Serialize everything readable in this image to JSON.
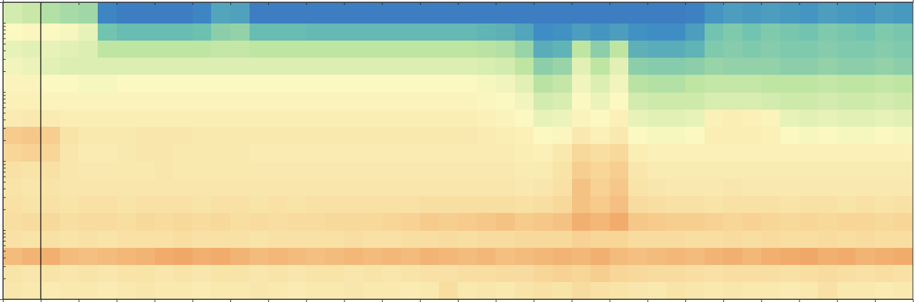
{
  "chart_data": {
    "type": "heatmap",
    "log": "y",
    "tick_labels": false,
    "xlim": [
      0,
      24
    ],
    "ylim": [
      1,
      20000
    ],
    "xticks": [
      1,
      2,
      3,
      4,
      5,
      6,
      7,
      8,
      9,
      10,
      11,
      12,
      13,
      14,
      15,
      16,
      17,
      18,
      19,
      20,
      21,
      22,
      23
    ],
    "yticks": [
      2,
      3,
      4,
      5,
      6,
      7,
      8,
      9,
      10,
      20,
      30,
      40,
      50,
      60,
      70,
      80,
      90,
      100,
      200,
      300,
      400,
      500,
      600,
      700,
      800,
      900,
      1000,
      2000,
      3000,
      4000,
      5000,
      6000,
      7000,
      8000,
      9000,
      10000
    ],
    "zlim": [
      0,
      10
    ],
    "vlines": [
      1
    ],
    "x_edges": [
      0,
      0.5,
      1,
      1.5,
      2,
      2.5,
      3,
      3.5,
      4,
      4.5,
      5,
      5.5,
      6,
      6.5,
      7,
      7.5,
      8,
      8.5,
      9,
      9.5,
      10,
      10.5,
      11,
      11.5,
      12,
      12.5,
      13,
      13.5,
      14,
      14.5,
      15,
      15.5,
      16,
      16.5,
      17,
      17.5,
      18,
      18.5,
      19,
      19.5,
      20,
      20.5,
      21,
      21.5,
      22,
      22.5,
      23,
      23.5,
      24
    ],
    "y_edges": [
      1,
      1.78,
      3.16,
      5.62,
      10,
      17.8,
      31.6,
      56.2,
      100,
      178,
      316,
      562,
      1000,
      1780,
      3160,
      5620,
      10000,
      20000
    ],
    "cells": [
      [
        5.7,
        5.6,
        5.5,
        5.6,
        5.6,
        5.5,
        5.6,
        5.7,
        5.6,
        5.6,
        5.5,
        5.6,
        5.6,
        5.7,
        5.6,
        5.5,
        5.6,
        5.6,
        5.7,
        5.6,
        5.6,
        5.5,
        5.6,
        6.0,
        5.6,
        5.7,
        5.6,
        5.8,
        5.9,
        5.8,
        6.1,
        5.9,
        5.8,
        5.7,
        5.6,
        5.8,
        5.7,
        5.6,
        5.7,
        5.6,
        5.6,
        5.5,
        5.6,
        5.9,
        5.6,
        5.6,
        5.5,
        5.6
      ],
      [
        5.8,
        5.7,
        5.8,
        5.7,
        5.8,
        5.7,
        5.8,
        5.8,
        5.7,
        5.8,
        5.7,
        5.8,
        5.8,
        5.7,
        5.8,
        5.7,
        5.8,
        5.8,
        5.7,
        5.8,
        5.7,
        5.8,
        5.9,
        5.9,
        6.0,
        6.0,
        6.1,
        6.1,
        6.3,
        6.4,
        6.3,
        6.5,
        6.3,
        6.2,
        6.1,
        6.1,
        6.0,
        5.9,
        6.0,
        6.0,
        6.0,
        5.9,
        6.0,
        6.1,
        6.0,
        5.9,
        6.0,
        5.9
      ],
      [
        7.0,
        7.2,
        7.3,
        7.0,
        6.9,
        7.0,
        7.1,
        7.2,
        7.4,
        7.5,
        7.3,
        7.4,
        7.2,
        7.0,
        7.1,
        7.0,
        6.9,
        7.0,
        7.1,
        7.0,
        7.1,
        7.0,
        7.2,
        7.1,
        7.0,
        7.1,
        6.9,
        7.0,
        7.1,
        7.2,
        7.1,
        7.3,
        7.0,
        6.9,
        7.0,
        7.1,
        7.0,
        7.2,
        7.3,
        7.1,
        7.3,
        7.4,
        7.5,
        7.3,
        7.4,
        7.2,
        7.3,
        7.4
      ],
      [
        5.9,
        5.8,
        5.9,
        5.8,
        5.9,
        5.8,
        5.9,
        5.9,
        5.9,
        6.0,
        5.9,
        5.9,
        5.9,
        5.8,
        5.9,
        5.9,
        5.9,
        5.9,
        6.0,
        5.9,
        5.9,
        6.0,
        6.0,
        6.1,
        6.0,
        6.1,
        6.1,
        6.2,
        6.2,
        6.2,
        6.4,
        6.3,
        6.3,
        6.1,
        6.1,
        6.1,
        6.0,
        6.0,
        6.1,
        6.0,
        6.1,
        6.0,
        6.0,
        6.1,
        6.0,
        6.1,
        6.0,
        6.0
      ],
      [
        6.0,
        6.1,
        6.2,
        6.0,
        6.1,
        6.1,
        6.0,
        6.2,
        6.1,
        6.2,
        6.1,
        6.2,
        6.0,
        6.1,
        6.0,
        6.1,
        6.1,
        6.2,
        6.2,
        6.2,
        6.3,
        6.4,
        6.6,
        6.5,
        6.6,
        6.7,
        6.8,
        6.6,
        6.7,
        6.8,
        7.3,
        7.1,
        7.4,
        6.7,
        6.6,
        6.5,
        6.5,
        6.4,
        6.3,
        6.4,
        6.3,
        6.2,
        6.3,
        6.2,
        6.3,
        6.3,
        6.2,
        6.3
      ],
      [
        5.9,
        5.8,
        5.9,
        5.8,
        5.9,
        5.9,
        5.8,
        5.9,
        5.9,
        5.9,
        5.8,
        5.9,
        5.9,
        5.8,
        5.9,
        5.8,
        5.9,
        5.9,
        5.9,
        5.9,
        5.9,
        5.9,
        6.0,
        6.0,
        6.0,
        6.0,
        6.0,
        5.9,
        6.0,
        6.2,
        6.8,
        6.6,
        6.9,
        6.1,
        6.0,
        5.9,
        5.9,
        5.8,
        5.9,
        5.9,
        5.9,
        5.8,
        5.9,
        5.9,
        5.8,
        5.9,
        5.8,
        5.9
      ],
      [
        5.8,
        5.7,
        5.8,
        5.7,
        5.7,
        5.7,
        5.7,
        5.7,
        5.7,
        5.7,
        5.7,
        5.7,
        5.7,
        5.7,
        5.7,
        5.7,
        5.7,
        5.7,
        5.7,
        5.7,
        5.7,
        5.7,
        5.7,
        5.7,
        5.7,
        5.7,
        5.7,
        5.6,
        5.7,
        5.9,
        6.8,
        6.4,
        6.7,
        5.8,
        5.7,
        5.6,
        5.6,
        5.6,
        5.7,
        5.6,
        5.6,
        5.6,
        5.6,
        5.6,
        5.6,
        5.6,
        5.6,
        5.6
      ],
      [
        5.9,
        5.8,
        5.9,
        5.7,
        5.6,
        5.6,
        5.6,
        5.6,
        5.7,
        5.6,
        5.6,
        5.6,
        5.6,
        5.6,
        5.6,
        5.6,
        5.6,
        5.6,
        5.6,
        5.6,
        5.6,
        5.6,
        5.6,
        5.6,
        5.6,
        5.6,
        5.6,
        5.5,
        5.5,
        5.8,
        6.5,
        6.3,
        6.5,
        5.7,
        5.5,
        5.5,
        5.5,
        5.5,
        5.5,
        5.5,
        5.5,
        5.5,
        5.5,
        5.5,
        5.5,
        5.5,
        5.5,
        5.5
      ],
      [
        6.3,
        6.4,
        6.3,
        5.7,
        5.5,
        5.5,
        5.6,
        5.7,
        5.7,
        5.6,
        5.6,
        5.6,
        5.6,
        5.5,
        5.5,
        5.5,
        5.5,
        5.5,
        5.5,
        5.5,
        5.5,
        5.5,
        5.5,
        5.5,
        5.5,
        5.5,
        5.5,
        5.4,
        5.3,
        5.6,
        6.2,
        6.0,
        6.2,
        5.4,
        5.3,
        5.3,
        5.3,
        5.3,
        5.3,
        5.3,
        5.3,
        5.3,
        5.3,
        5.3,
        5.3,
        5.3,
        5.3,
        5.3
      ],
      [
        6.6,
        6.7,
        6.5,
        5.8,
        5.6,
        5.6,
        5.6,
        5.7,
        5.7,
        5.7,
        5.6,
        5.6,
        5.6,
        5.6,
        5.6,
        5.6,
        5.6,
        5.6,
        5.6,
        5.6,
        5.6,
        5.6,
        5.6,
        5.6,
        5.6,
        5.5,
        5.4,
        5.3,
        5.0,
        5.1,
        5.6,
        5.3,
        5.6,
        5.0,
        4.9,
        4.9,
        5.0,
        5.4,
        5.4,
        5.4,
        5.3,
        5.0,
        4.9,
        5.0,
        4.9,
        4.9,
        5.0,
        4.9
      ],
      [
        5.5,
        5.6,
        5.5,
        5.4,
        5.4,
        5.4,
        5.4,
        5.4,
        5.4,
        5.4,
        5.4,
        5.4,
        5.4,
        5.4,
        5.4,
        5.4,
        5.4,
        5.4,
        5.4,
        5.4,
        5.4,
        5.4,
        5.4,
        5.4,
        5.4,
        5.3,
        5.2,
        5.0,
        4.6,
        4.7,
        5.2,
        5.0,
        5.3,
        4.6,
        4.5,
        4.5,
        4.6,
        5.3,
        5.4,
        5.3,
        5.2,
        4.6,
        4.5,
        4.6,
        4.5,
        4.5,
        4.6,
        4.5
      ],
      [
        5.3,
        5.3,
        5.2,
        5.2,
        5.2,
        5.2,
        5.2,
        5.2,
        5.2,
        5.2,
        5.2,
        5.2,
        5.2,
        5.2,
        5.2,
        5.2,
        5.2,
        5.2,
        5.2,
        5.2,
        5.2,
        5.2,
        5.2,
        5.2,
        5.2,
        5.1,
        5.0,
        4.8,
        4.2,
        4.3,
        5.0,
        4.7,
        5.0,
        4.2,
        4.1,
        4.1,
        4.1,
        4.3,
        4.3,
        4.3,
        4.2,
        4.1,
        4.1,
        4.2,
        4.1,
        4.1,
        4.2,
        4.1
      ],
      [
        5.2,
        5.2,
        5.0,
        5.0,
        4.9,
        4.9,
        5.0,
        5.0,
        5.0,
        5.0,
        5.0,
        5.0,
        5.0,
        5.0,
        5.0,
        5.0,
        5.0,
        5.0,
        5.0,
        5.0,
        5.0,
        5.0,
        5.0,
        5.0,
        5.0,
        4.9,
        4.8,
        4.5,
        3.7,
        3.9,
        4.8,
        4.4,
        4.8,
        3.7,
        3.6,
        3.6,
        3.8,
        3.9,
        3.9,
        3.9,
        3.8,
        3.8,
        3.8,
        3.9,
        3.8,
        3.8,
        3.9,
        3.8
      ],
      [
        4.8,
        4.7,
        4.5,
        4.4,
        4.4,
        4.4,
        4.4,
        4.4,
        4.4,
        4.4,
        4.4,
        4.4,
        4.4,
        4.4,
        4.4,
        4.4,
        4.4,
        4.4,
        4.4,
        4.4,
        4.4,
        4.4,
        4.4,
        4.4,
        4.4,
        4.3,
        4.2,
        3.8,
        3.0,
        3.2,
        4.5,
        3.8,
        4.5,
        3.0,
        2.9,
        2.9,
        3.0,
        3.2,
        3.1,
        3.1,
        3.1,
        3.0,
        3.0,
        3.1,
        3.0,
        3.0,
        3.1,
        3.0
      ],
      [
        4.6,
        4.5,
        4.6,
        4.5,
        4.4,
        3.8,
        3.8,
        3.8,
        3.8,
        3.8,
        3.8,
        3.9,
        3.9,
        3.8,
        3.8,
        3.8,
        3.8,
        3.8,
        3.8,
        3.8,
        3.8,
        3.8,
        3.8,
        3.8,
        3.8,
        3.7,
        3.6,
        3.2,
        2.0,
        2.2,
        3.8,
        3.0,
        3.8,
        2.1,
        2.0,
        2.0,
        2.2,
        2.8,
        2.9,
        2.8,
        2.9,
        2.8,
        2.8,
        2.9,
        2.8,
        2.8,
        2.9,
        2.8
      ],
      [
        5.0,
        5.1,
        5.0,
        4.9,
        4.6,
        2.6,
        2.4,
        2.4,
        2.4,
        2.4,
        2.5,
        3.0,
        3.1,
        2.4,
        2.4,
        2.4,
        2.3,
        2.3,
        2.3,
        2.3,
        2.3,
        2.3,
        2.3,
        2.3,
        2.3,
        2.2,
        2.1,
        1.8,
        1.2,
        1.3,
        1.6,
        1.4,
        1.6,
        1.3,
        1.2,
        1.2,
        1.6,
        2.6,
        2.8,
        2.6,
        2.8,
        2.7,
        2.6,
        2.8,
        2.7,
        2.6,
        2.8,
        2.7
      ],
      [
        4.2,
        4.0,
        3.6,
        3.4,
        3.3,
        1.0,
        0.8,
        0.8,
        0.8,
        0.8,
        1.0,
        1.8,
        1.7,
        0.8,
        0.8,
        0.8,
        0.8,
        0.8,
        0.8,
        0.8,
        0.8,
        0.8,
        0.8,
        0.8,
        0.8,
        0.8,
        0.8,
        0.8,
        0.8,
        0.8,
        0.8,
        0.8,
        0.8,
        0.8,
        0.8,
        0.8,
        0.9,
        1.4,
        1.6,
        1.5,
        1.6,
        1.5,
        1.4,
        1.6,
        1.5,
        1.4,
        1.6,
        1.5
      ]
    ]
  }
}
